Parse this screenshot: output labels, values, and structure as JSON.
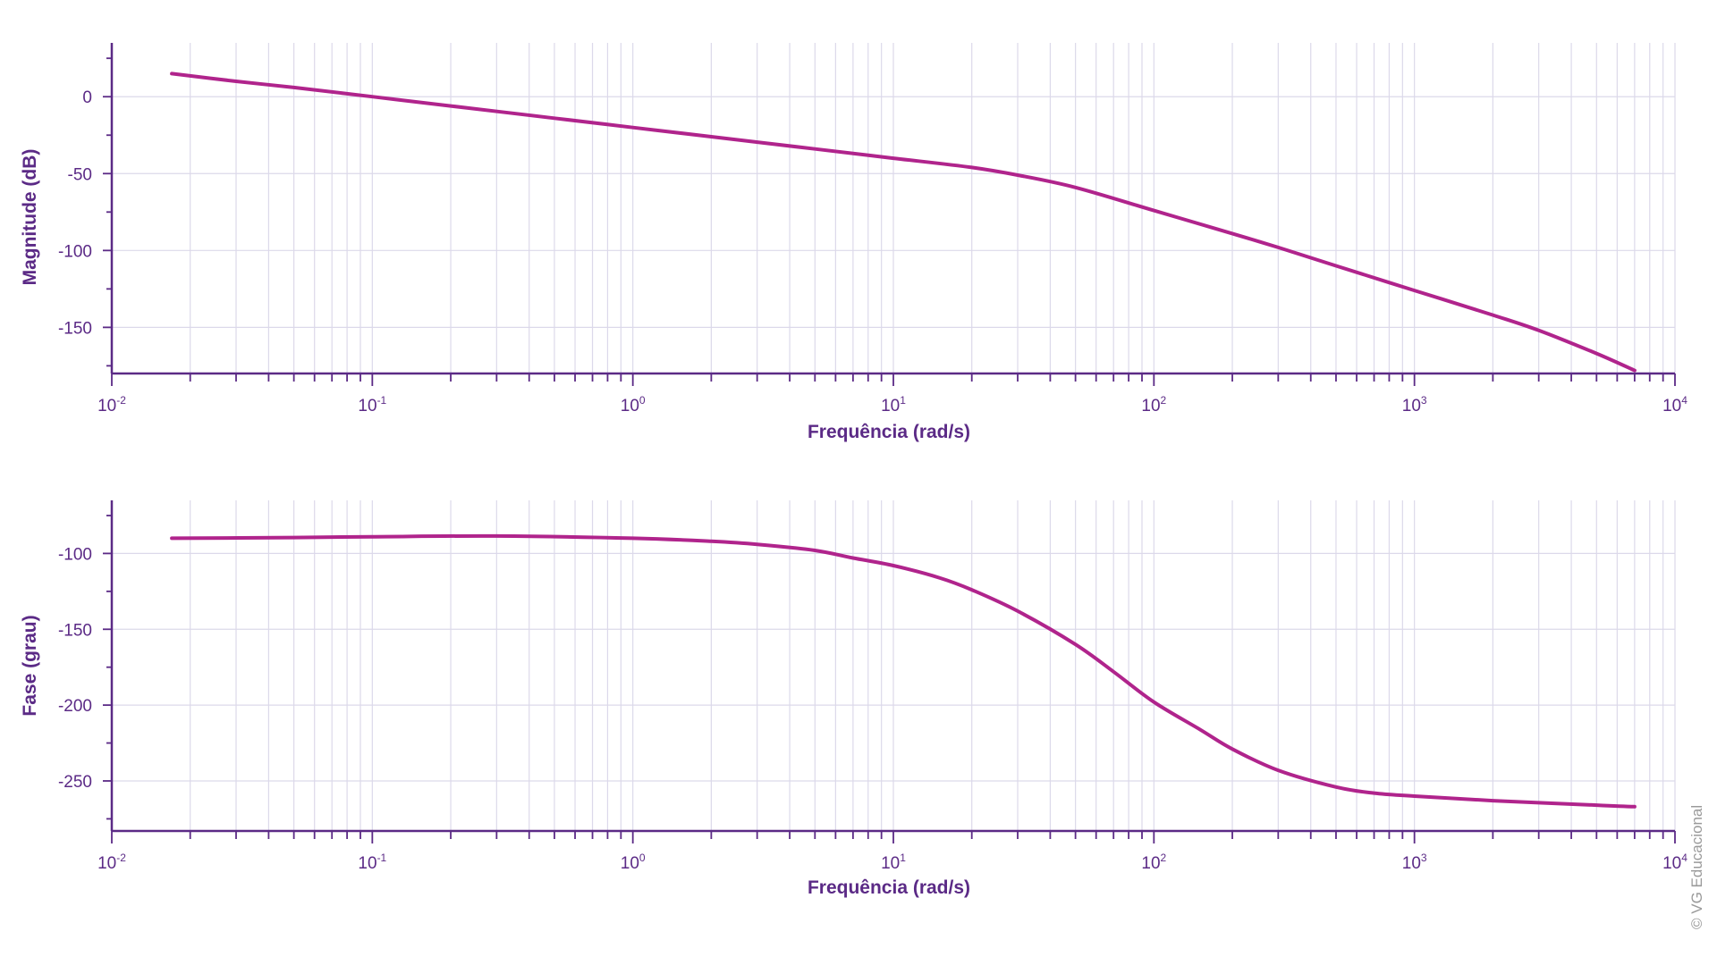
{
  "colors": {
    "axis": "#5b2a86",
    "grid": "#dcd9ea",
    "curve": "#b0248c",
    "text": "#5b2a86",
    "copyright": "#9a9a9a"
  },
  "copyright": "© VG Educacional",
  "chart_data": [
    {
      "type": "line",
      "title": "",
      "xlabel": "Frequência (rad/s)",
      "ylabel": "Magnitude (dB)",
      "xscale": "log",
      "xlim": [
        0.01,
        10000
      ],
      "ylim": [
        -180,
        35
      ],
      "x_ticks": [
        0.01,
        0.1,
        1,
        10,
        100,
        1000,
        10000
      ],
      "x_tick_labels": [
        {
          "base": "10",
          "exp": "-2"
        },
        {
          "base": "10",
          "exp": "-1"
        },
        {
          "base": "10",
          "exp": "0"
        },
        {
          "base": "10",
          "exp": "1"
        },
        {
          "base": "10",
          "exp": "2"
        },
        {
          "base": "10",
          "exp": "3"
        },
        {
          "base": "10",
          "exp": "4"
        }
      ],
      "y_ticks": [
        0,
        -50,
        -100,
        -150
      ],
      "y_tick_labels": [
        "0",
        "-50",
        "-100",
        "-150"
      ],
      "grid": true,
      "series": [
        {
          "x": [
            0.017,
            0.03,
            0.05,
            0.1,
            0.2,
            0.5,
            1,
            2,
            5,
            10,
            20,
            30,
            50,
            100,
            200,
            300,
            500,
            1000,
            2000,
            3000,
            5000,
            7000
          ],
          "y": [
            15,
            10,
            6,
            0,
            -6,
            -14,
            -20,
            -26,
            -34,
            -40,
            -46,
            -51,
            -59,
            -74,
            -89,
            -98,
            -110,
            -126,
            -142,
            -152,
            -167,
            -178
          ]
        }
      ]
    },
    {
      "type": "line",
      "title": "",
      "xlabel": "Frequência (rad/s)",
      "ylabel": "Fase (grau)",
      "xscale": "log",
      "xlim": [
        0.01,
        10000
      ],
      "ylim": [
        -283,
        -65
      ],
      "x_ticks": [
        0.01,
        0.1,
        1,
        10,
        100,
        1000,
        10000
      ],
      "x_tick_labels": [
        {
          "base": "10",
          "exp": "-2"
        },
        {
          "base": "10",
          "exp": "-1"
        },
        {
          "base": "10",
          "exp": "0"
        },
        {
          "base": "10",
          "exp": "1"
        },
        {
          "base": "10",
          "exp": "2"
        },
        {
          "base": "10",
          "exp": "3"
        },
        {
          "base": "10",
          "exp": "4"
        }
      ],
      "y_ticks": [
        -100,
        -150,
        -200,
        -250
      ],
      "y_tick_labels": [
        "-100",
        "-150",
        "-200",
        "-250"
      ],
      "grid": true,
      "series": [
        {
          "x": [
            0.017,
            0.05,
            0.1,
            0.3,
            1,
            2,
            3,
            5,
            7,
            10,
            15,
            20,
            30,
            50,
            70,
            100,
            150,
            200,
            300,
            500,
            700,
            1000,
            2000,
            5000,
            7000
          ],
          "y": [
            -90,
            -89.5,
            -89,
            -88.5,
            -90,
            -92,
            -94,
            -98,
            -103,
            -108,
            -116,
            -124,
            -138,
            -160,
            -178,
            -198,
            -216,
            -229,
            -243,
            -254,
            -258,
            -260,
            -263,
            -266,
            -267
          ]
        }
      ]
    }
  ]
}
